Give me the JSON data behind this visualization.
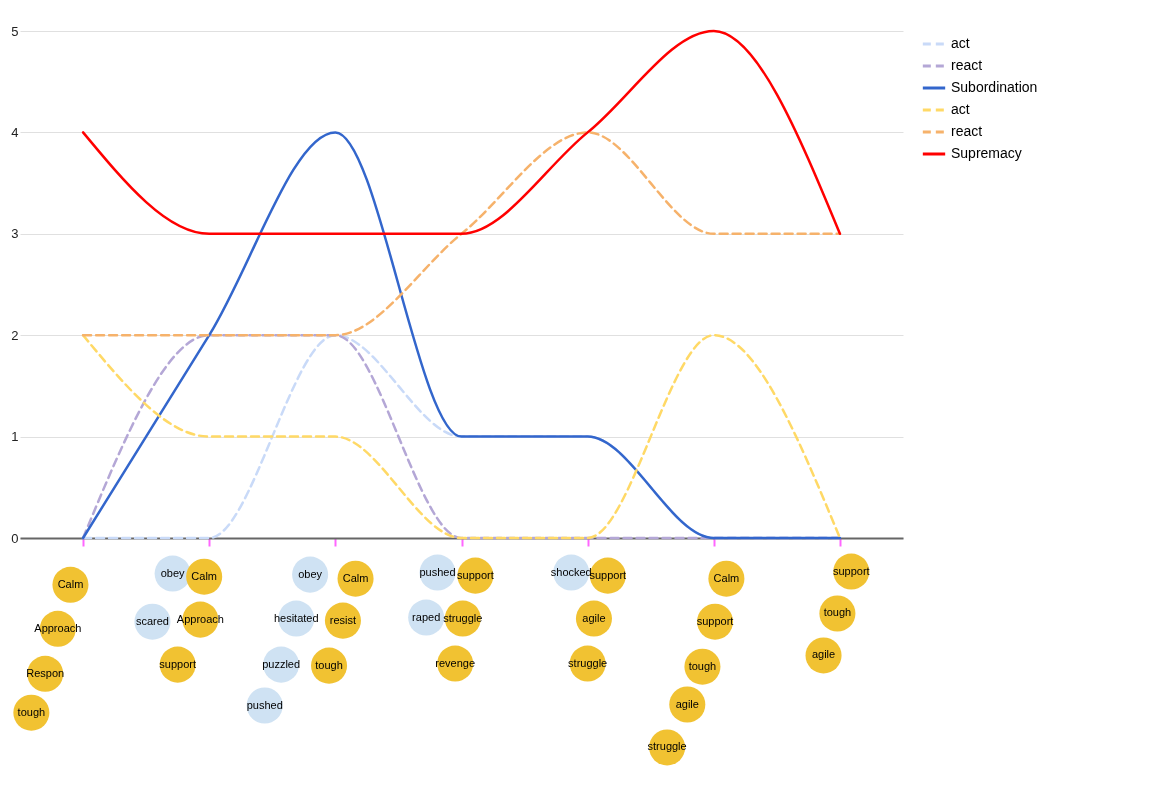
{
  "chart_data": {
    "type": "line",
    "categories": [
      null,
      null,
      null,
      null,
      null,
      null,
      null
    ],
    "ylim": [
      0,
      5
    ],
    "yticks": [
      0,
      1,
      2,
      3,
      4,
      5
    ],
    "grid": "y",
    "legend": "top right",
    "series": [
      {
        "name": "act",
        "color": "#c9daf8",
        "line_style": "dashed",
        "values": [
          0,
          0,
          2,
          1,
          1,
          0,
          0
        ]
      },
      {
        "name": "react",
        "color": "#b4a7d6",
        "line_style": "dashed",
        "values": [
          0,
          2,
          2,
          0,
          0,
          0,
          0
        ]
      },
      {
        "name": "Subordination",
        "color": "#3366cc",
        "line_style": "solid",
        "values": [
          0,
          2,
          4,
          1,
          1,
          0,
          0
        ]
      },
      {
        "name": "act",
        "color": "#ffd966",
        "line_style": "dashed",
        "values": [
          2,
          1,
          1,
          0,
          0,
          2,
          0
        ]
      },
      {
        "name": "react",
        "color": "#f6b26b",
        "line_style": "dashed",
        "values": [
          2,
          2,
          2,
          3,
          4,
          3,
          3
        ]
      },
      {
        "name": "Supremacy",
        "color": "#ff0000",
        "line_style": "solid",
        "values": [
          4,
          3,
          3,
          3,
          4,
          5,
          3
        ]
      }
    ],
    "annotations": [
      "obey",
      "scared",
      "obey",
      "hesitated",
      "puzzled",
      "pushed",
      "pushed",
      "raped",
      "shocked",
      "Calm",
      "Approach",
      "Respon",
      "tough",
      "Calm",
      "Approach",
      "support",
      "Calm",
      "resist",
      "tough",
      "support",
      "struggle",
      "revenge",
      "support",
      "agile",
      "struggle",
      "Calm",
      "support",
      "tough",
      "agile",
      "struggle",
      "support",
      "tough",
      "agile"
    ]
  }
}
